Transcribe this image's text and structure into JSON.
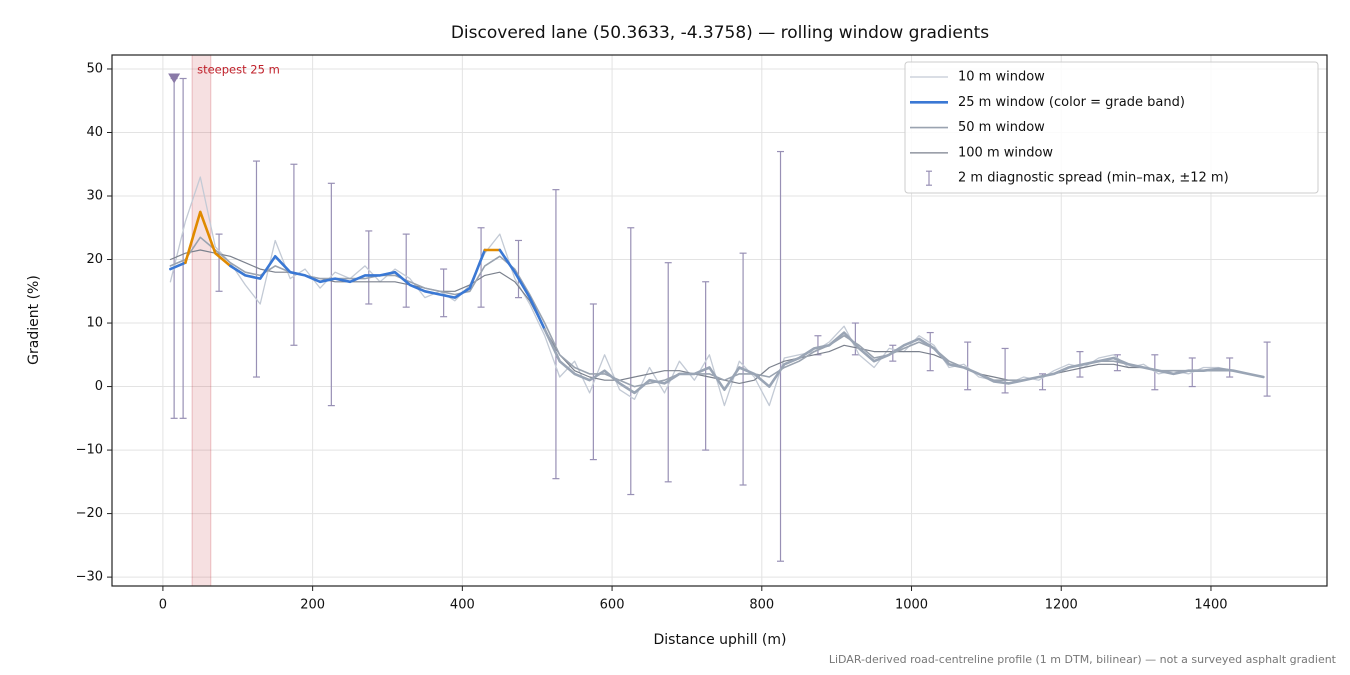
{
  "chart_data": {
    "type": "line",
    "title": "Discovered lane (50.3633, -4.3758) — rolling window gradients",
    "x_label": "Distance uphill (m)",
    "y_label": "Gradient (%)",
    "footnote": "LiDAR-derived road-centreline profile (1 m DTM, bilinear) — not a surveyed asphalt gradient",
    "xlim": [
      -68,
      1555
    ],
    "ylim": [
      -31.4,
      52.2
    ],
    "xticks": [
      0,
      200,
      400,
      600,
      800,
      1000,
      1200,
      1400
    ],
    "yticks": [
      {
        "value": -30,
        "label": "−30"
      },
      {
        "value": -20,
        "label": "−20"
      },
      {
        "value": -10,
        "label": "−10"
      },
      0,
      10,
      20,
      30,
      40,
      50
    ],
    "grid": true,
    "legend": "upper right",
    "x": [
      10,
      30,
      50,
      70,
      90,
      110,
      130,
      150,
      170,
      190,
      210,
      230,
      250,
      270,
      290,
      310,
      330,
      350,
      370,
      390,
      410,
      430,
      450,
      470,
      490,
      510,
      530,
      550,
      570,
      590,
      610,
      630,
      650,
      670,
      690,
      710,
      730,
      750,
      770,
      790,
      810,
      830,
      850,
      870,
      890,
      910,
      930,
      950,
      970,
      990,
      1010,
      1030,
      1050,
      1070,
      1090,
      1110,
      1130,
      1150,
      1170,
      1190,
      1210,
      1230,
      1250,
      1270,
      1290,
      1310,
      1330,
      1350,
      1370,
      1390,
      1410,
      1430,
      1450,
      1470
    ],
    "series": [
      {
        "name": "10 m window",
        "color": "#c3cad5",
        "width": 1.3,
        "values": [
          16.5,
          26,
          33,
          22,
          19.5,
          16,
          13,
          23,
          17,
          18.5,
          15.5,
          18,
          17,
          19,
          16.5,
          18.5,
          17,
          14,
          15,
          13.5,
          16,
          21,
          24,
          17,
          13,
          8,
          1.5,
          4,
          -1,
          5,
          -0.5,
          -2,
          3,
          -1,
          4,
          1,
          5,
          -3,
          4,
          1.5,
          -3,
          4.5,
          5,
          5.5,
          7,
          9.5,
          5,
          3,
          6,
          5.5,
          8,
          6.5,
          3,
          3.5,
          1.5,
          1,
          0.5,
          1.5,
          1,
          2.5,
          3.5,
          3,
          4.5,
          5,
          3,
          3.5,
          2,
          2.5,
          2,
          3,
          3,
          2.5,
          2,
          1.5
        ]
      },
      {
        "name": "25 m window (color = grade band)",
        "color": "#3a78d4",
        "width": 2.6,
        "grade_bands": [
          {
            "from": 10,
            "color": "#3a78d4"
          },
          {
            "from": 20,
            "color": "#e08a00"
          },
          {
            "from": 25,
            "color": "#c0202a"
          }
        ],
        "base_color": "#9aa5b5",
        "values": [
          18.5,
          19.5,
          27.5,
          21,
          19,
          17.5,
          17,
          20.5,
          18,
          17.5,
          16.5,
          17,
          16.5,
          17.5,
          17.5,
          18,
          16,
          15,
          14.5,
          14,
          15.5,
          21.5,
          21.5,
          18,
          14,
          9,
          4,
          2,
          1,
          2.5,
          0.5,
          -1,
          1,
          0.5,
          2,
          2,
          3,
          -0.5,
          3,
          2,
          0,
          3.5,
          4.5,
          6,
          6.5,
          8.5,
          6,
          4,
          5,
          6.5,
          7.5,
          6,
          3.5,
          3,
          2,
          0.8,
          0.5,
          1,
          1.5,
          2,
          3,
          3.5,
          4,
          4.5,
          3.5,
          3,
          2.5,
          2,
          2.5,
          2.5,
          2.8,
          2.5,
          2,
          1.5
        ]
      },
      {
        "name": "50 m window",
        "color": "#9aa3b0",
        "width": 1.6,
        "values": [
          19,
          20,
          23.5,
          21.5,
          19.5,
          18,
          17.5,
          19,
          18,
          17.5,
          17,
          17,
          17,
          17,
          17.5,
          17.5,
          16.5,
          15.5,
          15,
          14.5,
          15,
          19,
          20.5,
          18.5,
          14.5,
          10,
          5,
          3,
          2,
          2,
          1,
          0,
          0.5,
          1,
          2,
          2,
          2,
          1,
          2,
          2,
          1.5,
          3,
          4,
          5.5,
          6.5,
          8,
          6.5,
          4.5,
          5,
          6,
          7,
          6,
          4,
          3,
          2,
          1,
          1,
          1,
          1.5,
          2,
          3,
          3.5,
          4,
          4,
          3.5,
          3,
          2.5,
          2.5,
          2.5,
          2.5,
          2.5,
          2.5,
          2,
          1.5
        ]
      },
      {
        "name": "100 m window",
        "color": "#7b818d",
        "width": 1.2,
        "values": [
          20,
          21,
          21.5,
          21,
          20.5,
          19.5,
          18.5,
          18,
          18,
          17.5,
          17,
          16.5,
          16.5,
          16.5,
          16.5,
          16.5,
          16,
          15.5,
          15,
          15,
          16,
          17.5,
          18,
          16.5,
          13.5,
          9,
          5,
          2.5,
          1.5,
          1,
          1,
          1.5,
          2,
          2.5,
          2.5,
          2,
          1.5,
          1,
          0.5,
          1,
          3,
          4,
          4.5,
          5,
          5.5,
          6.5,
          6,
          5.5,
          5.5,
          5.5,
          5.5,
          5,
          4,
          3,
          2,
          1.5,
          1,
          1,
          1.5,
          2,
          2.5,
          3,
          3.5,
          3.5,
          3,
          3,
          2.5,
          2.5,
          2.5,
          2.5,
          2.5,
          2.5,
          2,
          1.5
        ]
      }
    ],
    "spread": {
      "name": "2 m diagnostic spread (min–max, ±12 m)",
      "color": "#9890b5",
      "x": [
        15,
        27,
        75,
        125,
        175,
        225,
        275,
        325,
        375,
        425,
        475,
        525,
        575,
        625,
        675,
        725,
        775,
        825,
        875,
        925,
        975,
        1025,
        1075,
        1125,
        1175,
        1225,
        1275,
        1325,
        1375,
        1425,
        1475
      ],
      "low": [
        -5,
        -5,
        15,
        1.5,
        6.5,
        -3,
        13,
        12.5,
        11,
        12.5,
        14,
        -14.5,
        -11.5,
        -17,
        -15,
        -10,
        -15.5,
        -27.5,
        5,
        5,
        4,
        2.5,
        -0.5,
        -1,
        -0.5,
        1.5,
        2.5,
        -0.5,
        0,
        1.5,
        -1.5
      ],
      "high": [
        48.5,
        48.5,
        24,
        35.5,
        35,
        32,
        24.5,
        24,
        18.5,
        25,
        23,
        31,
        13,
        25,
        19.5,
        16.5,
        21,
        37,
        8,
        10,
        6.5,
        8.5,
        7,
        6,
        2,
        5.5,
        5,
        5,
        4.5,
        4.5,
        7
      ]
    },
    "highlight": {
      "label": "steepest 25 m",
      "x": [
        39,
        64
      ],
      "color": "#c0202a"
    },
    "peak_marker": {
      "x": 15,
      "y": 48.5,
      "color": "#8a7aa8"
    }
  }
}
